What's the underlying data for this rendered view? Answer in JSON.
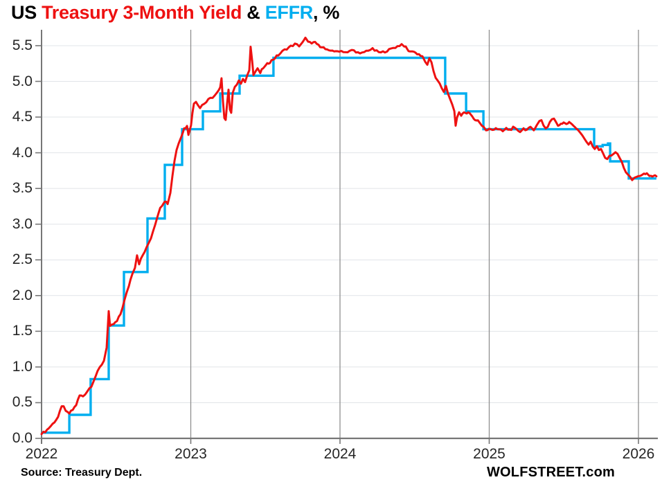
{
  "header": {
    "title_parts": [
      {
        "text": "US ",
        "color": "#000000"
      },
      {
        "text": "Treasury 3-Month Yield",
        "color": "#ee1111"
      },
      {
        "text": " & ",
        "color": "#000000"
      },
      {
        "text": "EFFR",
        "color": "#00aeef"
      },
      {
        "text": ", %",
        "color": "#000000"
      }
    ]
  },
  "footer": {
    "source": "Source: Treasury Dept.",
    "brand": "WOLFSTREET.com"
  },
  "chart_data": {
    "type": "line",
    "title": "US Treasury 3-Month Yield & EFFR, %",
    "unit": "%",
    "x_axis": {
      "ticks": [
        2022,
        2023,
        2024,
        2025,
        2026
      ],
      "range": [
        2022,
        2026.13
      ]
    },
    "y_axis": {
      "ticks": [
        "0.0",
        "0.5",
        "1.0",
        "1.5",
        "2.0",
        "2.5",
        "3.0",
        "3.5",
        "4.0",
        "4.5",
        "5.0",
        "5.5"
      ],
      "range": [
        0,
        5.72
      ]
    },
    "grid": {
      "horizontal": true,
      "vertical_years": true
    },
    "legend_position": "in-title",
    "series": [
      {
        "name": "Treasury 3-Month Yield",
        "color": "#ee1111",
        "line_style": "daily",
        "points": [
          [
            2022.0,
            0.06
          ],
          [
            2022.037,
            0.12
          ],
          [
            2022.074,
            0.2
          ],
          [
            2022.111,
            0.3
          ],
          [
            2022.135,
            0.44
          ],
          [
            2022.148,
            0.46
          ],
          [
            2022.162,
            0.37
          ],
          [
            2022.186,
            0.35
          ],
          [
            2022.209,
            0.4
          ],
          [
            2022.232,
            0.47
          ],
          [
            2022.255,
            0.6
          ],
          [
            2022.278,
            0.59
          ],
          [
            2022.306,
            0.66
          ],
          [
            2022.334,
            0.74
          ],
          [
            2022.362,
            0.87
          ],
          [
            2022.39,
            0.99
          ],
          [
            2022.418,
            1.09
          ],
          [
            2022.436,
            1.28
          ],
          [
            2022.45,
            1.78
          ],
          [
            2022.459,
            1.56
          ],
          [
            2022.483,
            1.6
          ],
          [
            2022.506,
            1.64
          ],
          [
            2022.529,
            1.74
          ],
          [
            2022.557,
            1.94
          ],
          [
            2022.585,
            2.14
          ],
          [
            2022.608,
            2.31
          ],
          [
            2022.626,
            2.4
          ],
          [
            2022.64,
            2.57
          ],
          [
            2022.654,
            2.45
          ],
          [
            2022.677,
            2.56
          ],
          [
            2022.705,
            2.67
          ],
          [
            2022.733,
            2.81
          ],
          [
            2022.761,
            3.0
          ],
          [
            2022.784,
            3.17
          ],
          [
            2022.807,
            3.27
          ],
          [
            2022.826,
            3.33
          ],
          [
            2022.845,
            3.29
          ],
          [
            2022.863,
            3.44
          ],
          [
            2022.877,
            3.68
          ],
          [
            2022.891,
            3.89
          ],
          [
            2022.905,
            4.04
          ],
          [
            2022.919,
            4.14
          ],
          [
            2022.937,
            4.24
          ],
          [
            2022.956,
            4.34
          ],
          [
            2022.975,
            4.37
          ],
          [
            2022.984,
            4.26
          ],
          [
            2022.993,
            4.33
          ],
          [
            2023.002,
            4.38
          ],
          [
            2023.011,
            4.56
          ],
          [
            2023.021,
            4.7
          ],
          [
            2023.035,
            4.72
          ],
          [
            2023.048,
            4.68
          ],
          [
            2023.062,
            4.63
          ],
          [
            2023.076,
            4.67
          ],
          [
            2023.09,
            4.69
          ],
          [
            2023.104,
            4.71
          ],
          [
            2023.118,
            4.74
          ],
          [
            2023.132,
            4.76
          ],
          [
            2023.146,
            4.78
          ],
          [
            2023.16,
            4.8
          ],
          [
            2023.174,
            4.83
          ],
          [
            2023.188,
            4.87
          ],
          [
            2023.197,
            4.91
          ],
          [
            2023.206,
            5.03
          ],
          [
            2023.216,
            4.73
          ],
          [
            2023.225,
            4.5
          ],
          [
            2023.234,
            4.46
          ],
          [
            2023.243,
            4.69
          ],
          [
            2023.253,
            4.87
          ],
          [
            2023.262,
            4.62
          ],
          [
            2023.271,
            4.57
          ],
          [
            2023.281,
            4.84
          ],
          [
            2023.295,
            4.91
          ],
          [
            2023.309,
            4.96
          ],
          [
            2023.322,
            5.01
          ],
          [
            2023.336,
            4.96
          ],
          [
            2023.35,
            5.02
          ],
          [
            2023.364,
            5.0
          ],
          [
            2023.378,
            5.08
          ],
          [
            2023.392,
            5.17
          ],
          [
            2023.401,
            5.5
          ],
          [
            2023.411,
            5.29
          ],
          [
            2023.42,
            5.09
          ],
          [
            2023.434,
            5.14
          ],
          [
            2023.448,
            5.17
          ],
          [
            2023.466,
            5.12
          ],
          [
            2023.485,
            5.19
          ],
          [
            2023.503,
            5.22
          ],
          [
            2023.522,
            5.26
          ],
          [
            2023.541,
            5.29
          ],
          [
            2023.564,
            5.33
          ],
          [
            2023.587,
            5.37
          ],
          [
            2023.615,
            5.42
          ],
          [
            2023.643,
            5.46
          ],
          [
            2023.67,
            5.49
          ],
          [
            2023.698,
            5.52
          ],
          [
            2023.726,
            5.5
          ],
          [
            2023.749,
            5.54
          ],
          [
            2023.768,
            5.6
          ],
          [
            2023.786,
            5.57
          ],
          [
            2023.81,
            5.52
          ],
          [
            2023.833,
            5.55
          ],
          [
            2023.856,
            5.5
          ],
          [
            2023.879,
            5.49
          ],
          [
            2023.902,
            5.45
          ],
          [
            2023.926,
            5.42
          ],
          [
            2023.949,
            5.44
          ],
          [
            2023.972,
            5.41
          ],
          [
            2023.995,
            5.43
          ],
          [
            2024.023,
            5.42
          ],
          [
            2024.051,
            5.4
          ],
          [
            2024.079,
            5.44
          ],
          [
            2024.107,
            5.42
          ],
          [
            2024.134,
            5.38
          ],
          [
            2024.162,
            5.41
          ],
          [
            2024.19,
            5.44
          ],
          [
            2024.218,
            5.45
          ],
          [
            2024.246,
            5.42
          ],
          [
            2024.274,
            5.4
          ],
          [
            2024.301,
            5.42
          ],
          [
            2024.329,
            5.44
          ],
          [
            2024.357,
            5.47
          ],
          [
            2024.385,
            5.49
          ],
          [
            2024.413,
            5.52
          ],
          [
            2024.431,
            5.5
          ],
          [
            2024.45,
            5.45
          ],
          [
            2024.469,
            5.41
          ],
          [
            2024.487,
            5.43
          ],
          [
            2024.506,
            5.4
          ],
          [
            2024.529,
            5.38
          ],
          [
            2024.552,
            5.34
          ],
          [
            2024.571,
            5.28
          ],
          [
            2024.585,
            5.22
          ],
          [
            2024.599,
            5.31
          ],
          [
            2024.613,
            5.27
          ],
          [
            2024.627,
            5.15
          ],
          [
            2024.641,
            5.06
          ],
          [
            2024.655,
            5.0
          ],
          [
            2024.668,
            4.96
          ],
          [
            2024.682,
            4.9
          ],
          [
            2024.696,
            4.86
          ],
          [
            2024.71,
            4.92
          ],
          [
            2024.724,
            4.84
          ],
          [
            2024.738,
            4.74
          ],
          [
            2024.752,
            4.68
          ],
          [
            2024.766,
            4.58
          ],
          [
            2024.775,
            4.38
          ],
          [
            2024.784,
            4.5
          ],
          [
            2024.798,
            4.56
          ],
          [
            2024.812,
            4.52
          ],
          [
            2024.831,
            4.58
          ],
          [
            2024.849,
            4.55
          ],
          [
            2024.868,
            4.56
          ],
          [
            2024.886,
            4.5
          ],
          [
            2024.905,
            4.45
          ],
          [
            2024.924,
            4.46
          ],
          [
            2024.942,
            4.4
          ],
          [
            2024.961,
            4.37
          ],
          [
            2024.979,
            4.31
          ],
          [
            2024.998,
            4.33
          ],
          [
            2025.021,
            4.32
          ],
          [
            2025.044,
            4.35
          ],
          [
            2025.067,
            4.32
          ],
          [
            2025.091,
            4.3
          ],
          [
            2025.114,
            4.34
          ],
          [
            2025.137,
            4.32
          ],
          [
            2025.16,
            4.35
          ],
          [
            2025.183,
            4.32
          ],
          [
            2025.207,
            4.3
          ],
          [
            2025.23,
            4.34
          ],
          [
            2025.253,
            4.32
          ],
          [
            2025.276,
            4.35
          ],
          [
            2025.299,
            4.33
          ],
          [
            2025.318,
            4.38
          ],
          [
            2025.336,
            4.44
          ],
          [
            2025.35,
            4.46
          ],
          [
            2025.364,
            4.39
          ],
          [
            2025.378,
            4.34
          ],
          [
            2025.392,
            4.37
          ],
          [
            2025.406,
            4.43
          ],
          [
            2025.42,
            4.47
          ],
          [
            2025.434,
            4.48
          ],
          [
            2025.448,
            4.42
          ],
          [
            2025.461,
            4.38
          ],
          [
            2025.48,
            4.41
          ],
          [
            2025.499,
            4.43
          ],
          [
            2025.517,
            4.41
          ],
          [
            2025.536,
            4.42
          ],
          [
            2025.554,
            4.4
          ],
          [
            2025.573,
            4.37
          ],
          [
            2025.592,
            4.32
          ],
          [
            2025.61,
            4.28
          ],
          [
            2025.624,
            4.23
          ],
          [
            2025.638,
            4.19
          ],
          [
            2025.652,
            4.15
          ],
          [
            2025.666,
            4.12
          ],
          [
            2025.68,
            4.14
          ],
          [
            2025.694,
            4.1
          ],
          [
            2025.707,
            4.06
          ],
          [
            2025.721,
            4.08
          ],
          [
            2025.735,
            4.05
          ],
          [
            2025.749,
            4.06
          ],
          [
            2025.763,
            3.98
          ],
          [
            2025.777,
            3.93
          ],
          [
            2025.791,
            3.91
          ],
          [
            2025.805,
            3.95
          ],
          [
            2025.819,
            3.97
          ],
          [
            2025.833,
            3.99
          ],
          [
            2025.846,
            4.0
          ],
          [
            2025.86,
            3.97
          ],
          [
            2025.874,
            3.93
          ],
          [
            2025.888,
            3.87
          ],
          [
            2025.902,
            3.79
          ],
          [
            2025.916,
            3.73
          ],
          [
            2025.93,
            3.69
          ],
          [
            2025.944,
            3.65
          ],
          [
            2025.958,
            3.63
          ],
          [
            2025.972,
            3.66
          ],
          [
            2025.986,
            3.65
          ],
          [
            2026.0,
            3.66
          ],
          [
            2026.019,
            3.67
          ],
          [
            2026.037,
            3.7
          ],
          [
            2026.056,
            3.71
          ],
          [
            2026.074,
            3.68
          ],
          [
            2026.093,
            3.66
          ],
          [
            2026.111,
            3.68
          ],
          [
            2026.12,
            3.67
          ]
        ]
      },
      {
        "name": "EFFR",
        "color": "#00aeef",
        "line_style": "step",
        "t_end": 2026.12,
        "points": [
          [
            2022.0,
            0.08
          ],
          [
            2022.186,
            0.33
          ],
          [
            2022.329,
            0.83
          ],
          [
            2022.45,
            1.58
          ],
          [
            2022.552,
            2.33
          ],
          [
            2022.71,
            3.08
          ],
          [
            2022.826,
            3.83
          ],
          [
            2022.942,
            4.33
          ],
          [
            2023.081,
            4.58
          ],
          [
            2023.197,
            4.83
          ],
          [
            2023.327,
            5.08
          ],
          [
            2023.554,
            5.33
          ],
          [
            2024.705,
            4.83
          ],
          [
            2024.845,
            4.58
          ],
          [
            2024.961,
            4.33
          ],
          [
            2025.703,
            4.09
          ],
          [
            2025.76,
            4.11
          ],
          [
            2025.796,
            4.13
          ],
          [
            2025.81,
            3.88
          ],
          [
            2025.935,
            3.64
          ]
        ]
      }
    ]
  },
  "colors": {
    "red_line": "#ee1111",
    "blue_line": "#00aeef",
    "h_gridline": "#e1e4e8",
    "v_gridline": "#8f8f8f",
    "axis": "#767676",
    "tick_label": "#262626"
  }
}
